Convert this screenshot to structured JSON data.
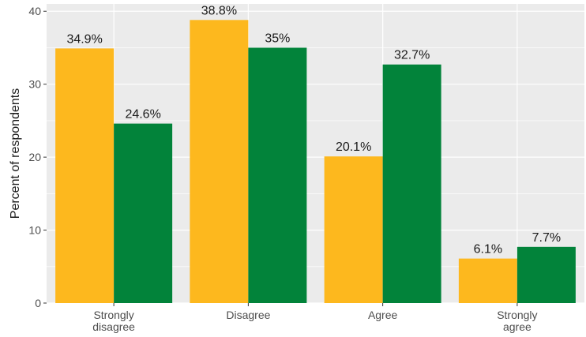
{
  "chart_data": {
    "type": "bar",
    "title": "",
    "xlabel": "",
    "ylabel": "Percent of respondents",
    "ylim": [
      0,
      41
    ],
    "yticks": [
      0,
      10,
      20,
      30,
      40
    ],
    "grid": true,
    "legend": "none",
    "categories": [
      [
        "Strongly",
        "disagree"
      ],
      [
        "Disagree"
      ],
      [
        "Agree"
      ],
      [
        "Strongly",
        "agree"
      ]
    ],
    "series": [
      {
        "values": [
          34.9,
          38.8,
          20.1,
          6.1
        ],
        "labels": [
          "34.9%",
          "38.8%",
          "20.1%",
          "6.1%"
        ],
        "color": "#FDB81E"
      },
      {
        "values": [
          24.6,
          35,
          32.7,
          7.7
        ],
        "labels": [
          "24.6%",
          "35%",
          "32.7%",
          "7.7%"
        ],
        "color": "#02833A"
      }
    ]
  },
  "colors": {
    "panel_background": "#EBEBEB",
    "grid_line": "#FFFFFF"
  }
}
